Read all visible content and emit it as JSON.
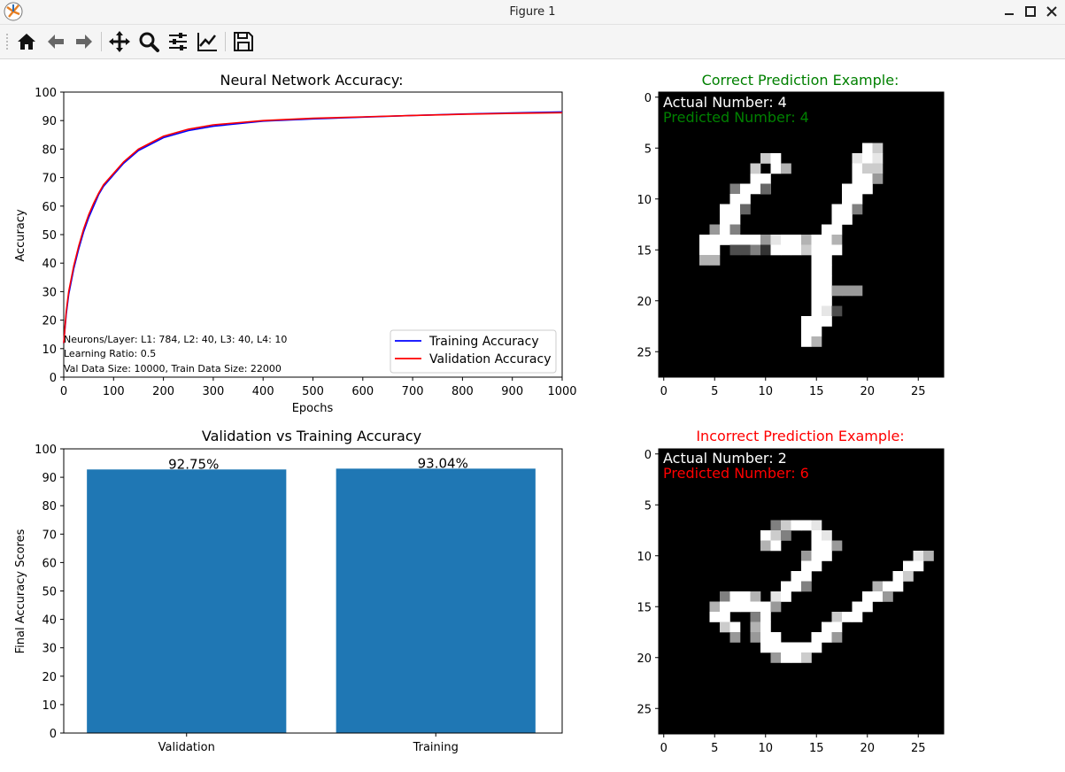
{
  "window": {
    "title": "Figure 1"
  },
  "toolbar": {
    "buttons": [
      "home-icon",
      "back-arrow-icon",
      "forward-arrow-icon",
      "pan-icon",
      "zoom-icon",
      "configure-subplots-icon",
      "edit-axis-icon",
      "save-icon"
    ]
  },
  "colors": {
    "training": "#0000ff",
    "validation": "#ff0000",
    "bar": "#1f77b4",
    "correct": "#008000",
    "incorrect": "#ff0000"
  },
  "chart_data": [
    {
      "type": "line",
      "title": "Neural Network Accuracy:",
      "xlabel": "Epochs",
      "ylabel": "Accuracy",
      "xlim": [
        0,
        1000
      ],
      "ylim": [
        0,
        100
      ],
      "xticks": [
        "0",
        "100",
        "200",
        "300",
        "400",
        "500",
        "600",
        "700",
        "800",
        "900",
        "1000"
      ],
      "yticks": [
        "0",
        "10",
        "20",
        "30",
        "40",
        "50",
        "60",
        "70",
        "80",
        "90",
        "100"
      ],
      "legend": "lower-right",
      "series": [
        {
          "name": "Training Accuracy",
          "x": [
            0,
            5,
            10,
            20,
            30,
            40,
            50,
            60,
            70,
            80,
            100,
            120,
            150,
            200,
            250,
            300,
            400,
            500,
            600,
            700,
            800,
            900,
            1000
          ],
          "y": [
            12,
            22,
            29,
            38,
            45,
            51,
            56,
            60,
            64,
            67,
            71,
            75,
            79.5,
            84,
            86.5,
            88,
            89.8,
            90.6,
            91.2,
            91.8,
            92.3,
            92.7,
            93.04
          ]
        },
        {
          "name": "Validation Accuracy",
          "x": [
            0,
            5,
            10,
            20,
            30,
            40,
            50,
            60,
            70,
            80,
            100,
            120,
            150,
            200,
            250,
            300,
            400,
            500,
            600,
            700,
            800,
            900,
            1000
          ],
          "y": [
            12,
            23,
            30,
            39,
            46,
            52,
            57,
            61,
            64.5,
            67.5,
            71.5,
            75.5,
            80,
            84.5,
            87,
            88.5,
            90,
            90.8,
            91.3,
            91.8,
            92.2,
            92.5,
            92.75
          ]
        }
      ],
      "annotations": [
        "Neurons/Layer: L1: 784, L2: 40, L3: 40, L4: 10",
        "Learning Ratio: 0.5",
        "Val Data Size: 10000, Train Data Size: 22000"
      ]
    },
    {
      "type": "bar",
      "title": "Validation vs Training Accuracy",
      "xlabel": "",
      "ylabel": "Final Accuracy Scores",
      "ylim": [
        0,
        100
      ],
      "yticks": [
        "0",
        "10",
        "20",
        "30",
        "40",
        "50",
        "60",
        "70",
        "80",
        "90",
        "100"
      ],
      "categories": [
        "Validation",
        "Training"
      ],
      "values": [
        92.75,
        93.04
      ],
      "labels": [
        "92.75%",
        "93.04%"
      ]
    },
    {
      "type": "heatmap",
      "title": "Correct Prediction Example:",
      "ticks": [
        "0",
        "5",
        "10",
        "15",
        "20",
        "25"
      ],
      "yticks": [
        "0",
        "5",
        "10",
        "15",
        "20",
        "25"
      ],
      "annotations": [
        "Actual Number: 4",
        "Predicted Number: 4"
      ],
      "pixels": [
        [
          8,
          9,
          1
        ],
        [
          8,
          10,
          1
        ],
        [
          9,
          10,
          1
        ],
        [
          6,
          10,
          0.8
        ],
        [
          6,
          11,
          1
        ],
        [
          7,
          11,
          1
        ],
        [
          7,
          9,
          0.8
        ],
        [
          7,
          12,
          0.7
        ],
        [
          5,
          20,
          1
        ],
        [
          5,
          21,
          0.8
        ],
        [
          6,
          19,
          0.9
        ],
        [
          6,
          20,
          1
        ],
        [
          6,
          21,
          0.9
        ],
        [
          7,
          19,
          1
        ],
        [
          7,
          20,
          0.8
        ],
        [
          7,
          21,
          0.8
        ],
        [
          8,
          19,
          1
        ],
        [
          8,
          20,
          1
        ],
        [
          8,
          21,
          0.6
        ],
        [
          9,
          7,
          0.5
        ],
        [
          9,
          8,
          1
        ],
        [
          9,
          9,
          1
        ],
        [
          9,
          10,
          0.4
        ],
        [
          9,
          18,
          1
        ],
        [
          9,
          19,
          1
        ],
        [
          9,
          20,
          1
        ],
        [
          10,
          7,
          1
        ],
        [
          10,
          8,
          1
        ],
        [
          10,
          18,
          1
        ],
        [
          10,
          19,
          1
        ],
        [
          11,
          6,
          1
        ],
        [
          11,
          7,
          1
        ],
        [
          11,
          8,
          0.4
        ],
        [
          11,
          17,
          1
        ],
        [
          11,
          18,
          1
        ],
        [
          11,
          19,
          0.5
        ],
        [
          12,
          6,
          1
        ],
        [
          12,
          7,
          1
        ],
        [
          12,
          17,
          1
        ],
        [
          12,
          18,
          1
        ],
        [
          13,
          5,
          0.6
        ],
        [
          13,
          6,
          1
        ],
        [
          13,
          7,
          0.5
        ],
        [
          13,
          16,
          1
        ],
        [
          13,
          17,
          1
        ],
        [
          14,
          4,
          1
        ],
        [
          14,
          5,
          1
        ],
        [
          14,
          6,
          1
        ],
        [
          14,
          7,
          1
        ],
        [
          14,
          8,
          1
        ],
        [
          14,
          9,
          1
        ],
        [
          14,
          10,
          0.6
        ],
        [
          14,
          11,
          0.9
        ],
        [
          14,
          12,
          1
        ],
        [
          14,
          13,
          1
        ],
        [
          14,
          14,
          0.7
        ],
        [
          14,
          15,
          1
        ],
        [
          14,
          16,
          1
        ],
        [
          14,
          17,
          0.7
        ],
        [
          15,
          4,
          1
        ],
        [
          15,
          5,
          1
        ],
        [
          15,
          7,
          0.3
        ],
        [
          15,
          8,
          0.3
        ],
        [
          15,
          9,
          0.5
        ],
        [
          15,
          10,
          0.2
        ],
        [
          15,
          11,
          1
        ],
        [
          15,
          12,
          1
        ],
        [
          15,
          13,
          1
        ],
        [
          15,
          14,
          0.8
        ],
        [
          15,
          15,
          1
        ],
        [
          15,
          16,
          1
        ],
        [
          15,
          17,
          1
        ],
        [
          16,
          4,
          0.7
        ],
        [
          16,
          5,
          0.7
        ],
        [
          16,
          15,
          1
        ],
        [
          16,
          16,
          1
        ],
        [
          17,
          15,
          1
        ],
        [
          17,
          16,
          1
        ],
        [
          18,
          15,
          1
        ],
        [
          18,
          16,
          1
        ],
        [
          19,
          15,
          1
        ],
        [
          19,
          16,
          1
        ],
        [
          19,
          17,
          0.6
        ],
        [
          19,
          18,
          0.6
        ],
        [
          19,
          19,
          0.6
        ],
        [
          20,
          15,
          1
        ],
        [
          20,
          16,
          1
        ],
        [
          21,
          15,
          1
        ],
        [
          21,
          16,
          0.9
        ],
        [
          21,
          17,
          0.3
        ],
        [
          22,
          14,
          1
        ],
        [
          22,
          15,
          1
        ],
        [
          22,
          16,
          1
        ],
        [
          23,
          14,
          1
        ],
        [
          23,
          15,
          1
        ],
        [
          24,
          14,
          1
        ],
        [
          24,
          15,
          0.7
        ]
      ]
    },
    {
      "type": "heatmap",
      "title": "Incorrect Prediction Example:",
      "ticks": [
        "0",
        "5",
        "10",
        "15",
        "20",
        "25"
      ],
      "yticks": [
        "0",
        "5",
        "10",
        "15",
        "20",
        "25"
      ],
      "annotations": [
        "Actual Number: 2",
        "Predicted Number: 6"
      ],
      "pixels": [
        [
          7,
          11,
          0.5
        ],
        [
          7,
          12,
          0.8
        ],
        [
          7,
          13,
          1
        ],
        [
          7,
          14,
          1
        ],
        [
          7,
          15,
          0.9
        ],
        [
          8,
          10,
          1
        ],
        [
          8,
          11,
          0.8
        ],
        [
          8,
          12,
          0.5
        ],
        [
          8,
          15,
          1
        ],
        [
          8,
          16,
          0.9
        ],
        [
          9,
          10,
          0.7
        ],
        [
          9,
          11,
          1
        ],
        [
          9,
          15,
          1
        ],
        [
          9,
          16,
          1
        ],
        [
          9,
          17,
          0.6
        ],
        [
          10,
          14,
          0.6
        ],
        [
          10,
          15,
          1
        ],
        [
          10,
          16,
          1
        ],
        [
          10,
          25,
          0.9
        ],
        [
          10,
          26,
          0.7
        ],
        [
          11,
          14,
          1
        ],
        [
          11,
          15,
          1
        ],
        [
          11,
          24,
          1
        ],
        [
          11,
          25,
          1
        ],
        [
          12,
          13,
          1
        ],
        [
          12,
          14,
          1
        ],
        [
          12,
          23,
          1
        ],
        [
          12,
          24,
          0.8
        ],
        [
          13,
          12,
          1
        ],
        [
          13,
          13,
          1
        ],
        [
          13,
          14,
          0.5
        ],
        [
          13,
          21,
          0.7
        ],
        [
          13,
          22,
          1
        ],
        [
          13,
          23,
          1
        ],
        [
          14,
          6,
          0.5
        ],
        [
          14,
          7,
          1
        ],
        [
          14,
          8,
          1
        ],
        [
          14,
          9,
          0.7
        ],
        [
          14,
          11,
          0.9
        ],
        [
          14,
          12,
          1
        ],
        [
          14,
          20,
          1
        ],
        [
          14,
          21,
          1
        ],
        [
          14,
          22,
          0.6
        ],
        [
          15,
          5,
          0.7
        ],
        [
          15,
          6,
          1
        ],
        [
          15,
          7,
          1
        ],
        [
          15,
          8,
          1
        ],
        [
          15,
          9,
          1
        ],
        [
          15,
          10,
          1
        ],
        [
          15,
          11,
          0.6
        ],
        [
          15,
          19,
          1
        ],
        [
          15,
          20,
          1
        ],
        [
          16,
          5,
          1
        ],
        [
          16,
          6,
          1
        ],
        [
          16,
          9,
          0.5
        ],
        [
          16,
          10,
          1
        ],
        [
          16,
          17,
          0.8
        ],
        [
          16,
          18,
          1
        ],
        [
          16,
          19,
          1
        ],
        [
          17,
          6,
          0.8
        ],
        [
          17,
          7,
          1
        ],
        [
          17,
          9,
          0.7
        ],
        [
          17,
          10,
          1
        ],
        [
          17,
          16,
          1
        ],
        [
          17,
          17,
          1
        ],
        [
          18,
          7,
          0.6
        ],
        [
          18,
          9,
          0.6
        ],
        [
          18,
          10,
          1
        ],
        [
          18,
          11,
          1
        ],
        [
          18,
          15,
          1
        ],
        [
          18,
          16,
          1
        ],
        [
          18,
          17,
          0.6
        ],
        [
          19,
          10,
          1
        ],
        [
          19,
          11,
          1
        ],
        [
          19,
          12,
          1
        ],
        [
          19,
          13,
          1
        ],
        [
          19,
          14,
          1
        ],
        [
          19,
          15,
          1
        ],
        [
          20,
          11,
          0.6
        ],
        [
          20,
          12,
          1
        ],
        [
          20,
          13,
          1
        ],
        [
          20,
          14,
          0.8
        ]
      ]
    }
  ]
}
